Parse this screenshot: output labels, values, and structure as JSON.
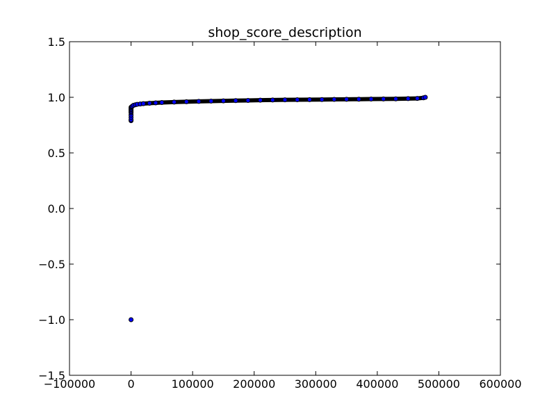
{
  "chart_data": {
    "type": "scatter",
    "title": "shop_score_description",
    "xlabel": "",
    "ylabel": "",
    "xlim": [
      -100000,
      600000
    ],
    "ylim": [
      -1.5,
      1.5
    ],
    "xticks": [
      -100000,
      0,
      100000,
      200000,
      300000,
      400000,
      500000,
      600000
    ],
    "xtick_labels": [
      "−100000",
      "0",
      "100000",
      "200000",
      "300000",
      "400000",
      "500000",
      "600000"
    ],
    "yticks": [
      -1.5,
      -1.0,
      -0.5,
      0.0,
      0.5,
      1.0,
      1.5
    ],
    "ytick_labels": [
      "−1.5",
      "−1.0",
      "−0.5",
      "0.0",
      "0.5",
      "1.0",
      "1.5"
    ],
    "grid": false,
    "legend": "none",
    "marker_color": "#0000ff",
    "marker_edge_color": "#000000",
    "series": [
      {
        "points": [
          [
            0,
            -1.0
          ],
          [
            0,
            0.79
          ],
          [
            0,
            0.8
          ],
          [
            0,
            0.82
          ],
          [
            0,
            0.84
          ],
          [
            0,
            0.86
          ],
          [
            0,
            0.87
          ],
          [
            0,
            0.88
          ],
          [
            0,
            0.89
          ],
          [
            0,
            0.9
          ],
          [
            0,
            0.91
          ],
          [
            1000,
            0.915
          ],
          [
            2000,
            0.92
          ],
          [
            4000,
            0.928
          ],
          [
            7000,
            0.933
          ],
          [
            10000,
            0.937
          ],
          [
            15000,
            0.94
          ],
          [
            20000,
            0.943
          ],
          [
            30000,
            0.947
          ],
          [
            40000,
            0.95
          ],
          [
            50000,
            0.953
          ],
          [
            70000,
            0.957
          ],
          [
            90000,
            0.96
          ],
          [
            110000,
            0.963
          ],
          [
            130000,
            0.966
          ],
          [
            150000,
            0.968
          ],
          [
            170000,
            0.97
          ],
          [
            190000,
            0.972
          ],
          [
            210000,
            0.974
          ],
          [
            230000,
            0.976
          ],
          [
            250000,
            0.977
          ],
          [
            270000,
            0.978
          ],
          [
            290000,
            0.979
          ],
          [
            310000,
            0.98
          ],
          [
            330000,
            0.981
          ],
          [
            350000,
            0.982
          ],
          [
            370000,
            0.983
          ],
          [
            390000,
            0.984
          ],
          [
            410000,
            0.985
          ],
          [
            430000,
            0.986
          ],
          [
            450000,
            0.988
          ],
          [
            465000,
            0.99
          ],
          [
            475000,
            0.995
          ],
          [
            478000,
            1.0
          ]
        ]
      }
    ]
  }
}
